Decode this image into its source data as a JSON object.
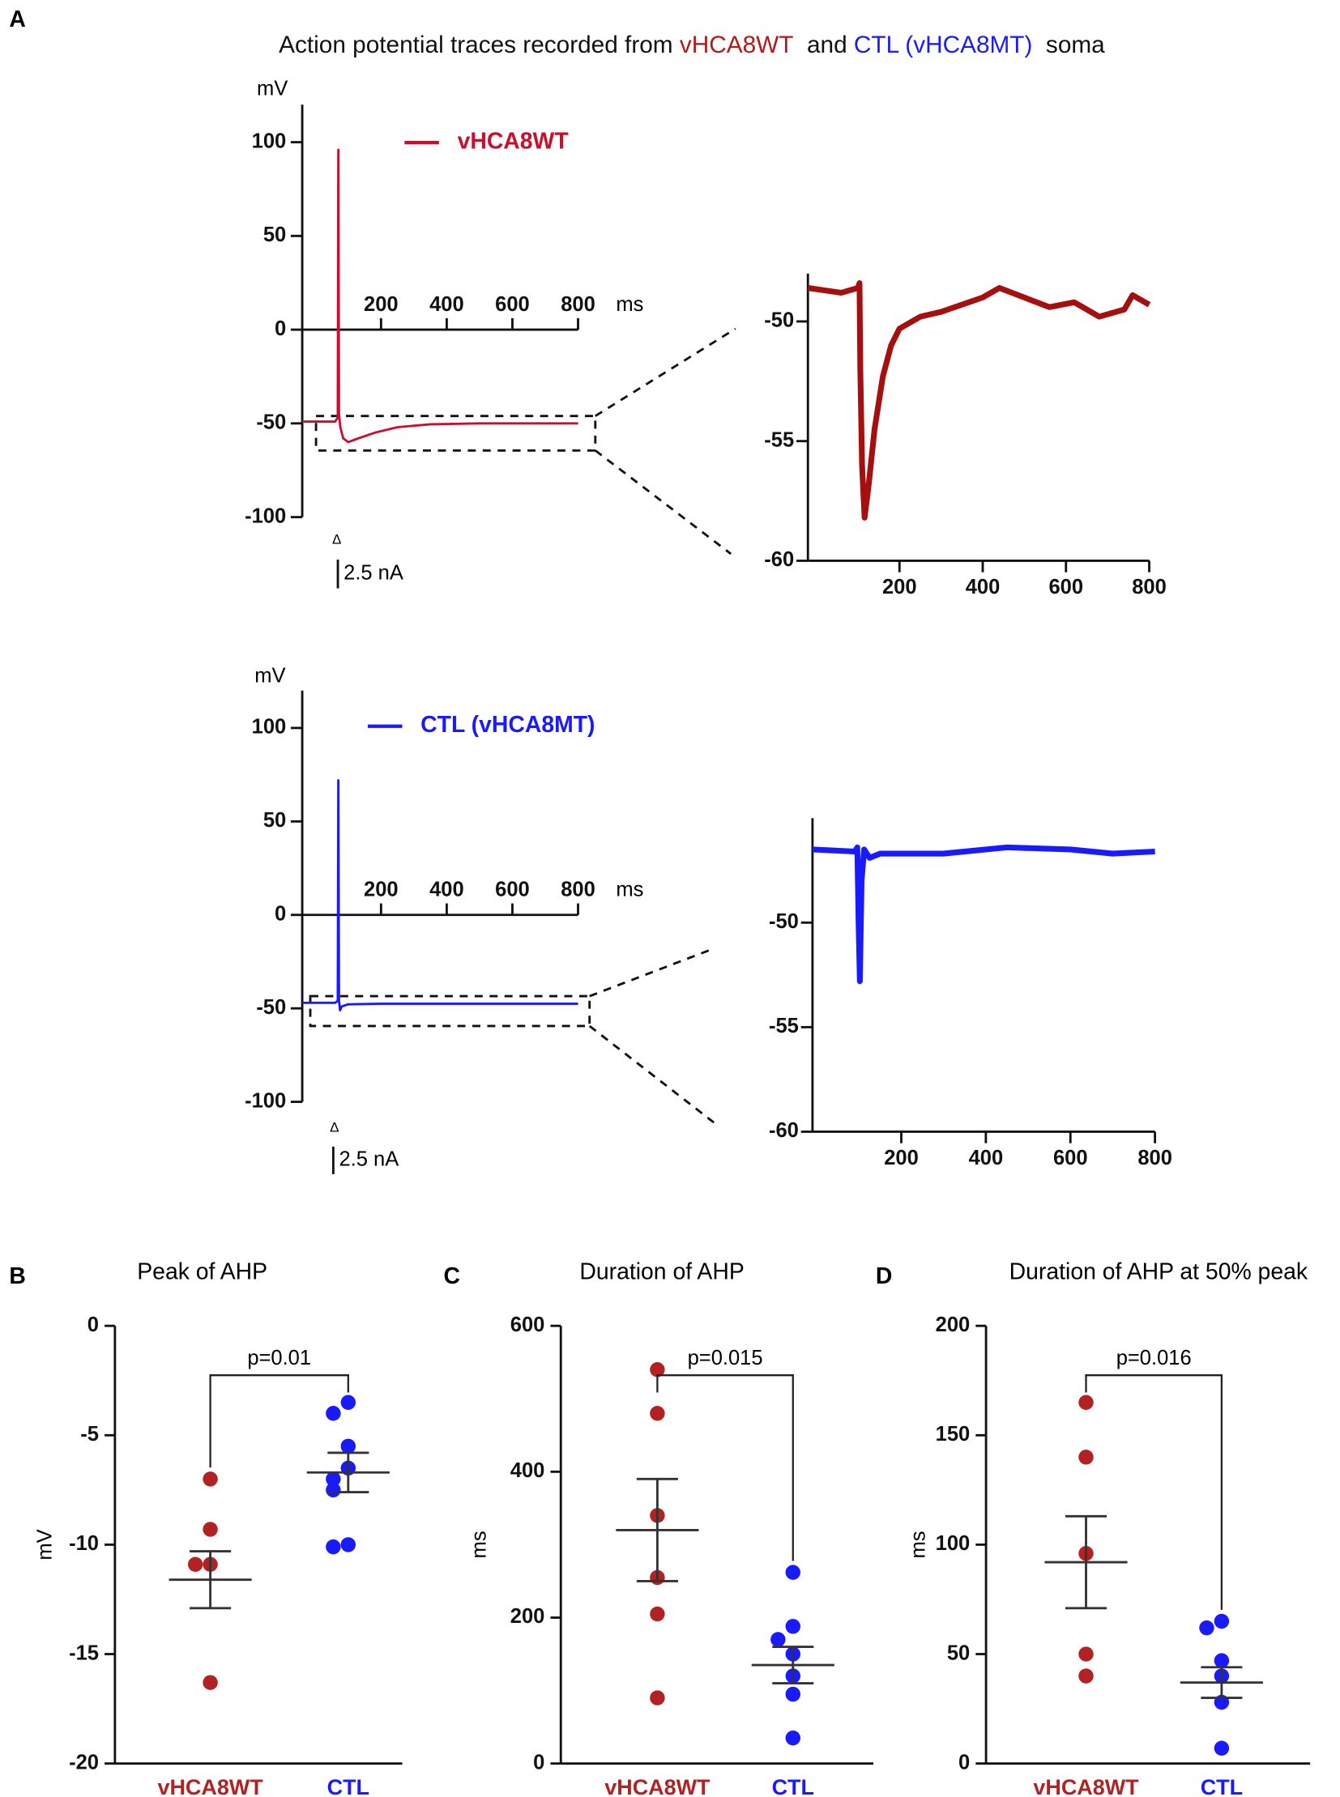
{
  "panel_labels": [
    "A",
    "B",
    "C",
    "D"
  ],
  "figure_title": [
    {
      "text": "Action potential traces recorded from ",
      "color": "#111111"
    },
    {
      "text": "vHCA8WT",
      "color": "#b31b1b"
    },
    {
      "text": "  and ",
      "color": "#111111"
    },
    {
      "text": "CTL (vHCA8MT)",
      "color": "#1a1aff"
    },
    {
      "text": "  soma",
      "color": "#111111"
    }
  ],
  "chart_data": [
    {
      "type": "trace",
      "ylabel": "mV",
      "xunit": "ms",
      "stim_label": "Δ",
      "scale_label": "2.5 nA",
      "xlim": [
        -40,
        800
      ],
      "ylim": [
        -100,
        120
      ],
      "xticks": [
        200,
        400,
        600,
        800
      ],
      "yticks": [
        100,
        50,
        0,
        -50,
        -100
      ],
      "x": [
        -40,
        60,
        68,
        70,
        72,
        76,
        85,
        100,
        130,
        180,
        250,
        350,
        500,
        800
      ],
      "series": [
        {
          "name": "vHCA8WT",
          "color": "#c8102e",
          "values": [
            -49,
            -49,
            -47,
            96,
            -45,
            -52,
            -58,
            -60,
            -58,
            -55,
            -52,
            -50.5,
            -50,
            -50
          ]
        }
      ]
    },
    {
      "type": "zoom",
      "xlim": [
        -20,
        800
      ],
      "ylim": [
        -60,
        -48
      ],
      "xticks": [
        200,
        400,
        600,
        800
      ],
      "yticks": [
        -50,
        -55,
        -60
      ],
      "x": [
        -20,
        60,
        100,
        104,
        106,
        110,
        116,
        125,
        140,
        160,
        180,
        200,
        250,
        300,
        400,
        440,
        500,
        560,
        620,
        680,
        740,
        760,
        800
      ],
      "series": [
        {
          "color": "#a50f0f",
          "values": [
            -48.6,
            -48.8,
            -48.6,
            -48.4,
            -52,
            -56,
            -58.2,
            -57,
            -54.5,
            -52.3,
            -51,
            -50.3,
            -49.8,
            -49.6,
            -49,
            -48.6,
            -49,
            -49.4,
            -49.2,
            -49.8,
            -49.5,
            -48.9,
            -49.3
          ]
        }
      ]
    },
    {
      "type": "trace",
      "ylabel": "mV",
      "xunit": "ms",
      "stim_label": "Δ",
      "scale_label": "2.5 nA",
      "xlim": [
        -40,
        800
      ],
      "ylim": [
        -100,
        120
      ],
      "xticks": [
        200,
        400,
        600,
        800
      ],
      "yticks": [
        100,
        50,
        0,
        -50,
        -100
      ],
      "x": [
        -40,
        60,
        68,
        70,
        72,
        75,
        80,
        100,
        200,
        800
      ],
      "series": [
        {
          "name": "CTL (vHCA8MT)",
          "color": "#1a1aff",
          "values": [
            -47,
            -47,
            -46,
            72,
            -46,
            -51,
            -49,
            -47.8,
            -47.5,
            -47.5
          ]
        }
      ]
    },
    {
      "type": "zoom",
      "xlim": [
        -10,
        800
      ],
      "ylim": [
        -60,
        -45
      ],
      "xticks": [
        200,
        400,
        600,
        800
      ],
      "yticks": [
        -50,
        -55,
        -60
      ],
      "x": [
        -10,
        90,
        96,
        99,
        102,
        106,
        112,
        125,
        150,
        300,
        450,
        600,
        700,
        800
      ],
      "series": [
        {
          "color": "#1a1aff",
          "values": [
            -46.5,
            -46.6,
            -46.4,
            -50,
            -52.8,
            -48,
            -46.5,
            -46.9,
            -46.7,
            -46.7,
            -46.4,
            -46.5,
            -46.7,
            -46.6
          ]
        }
      ]
    },
    {
      "type": "strip",
      "title": "Peak of AHP",
      "ylabel": "mV",
      "annotation": "p=0.01",
      "ylim": [
        -20,
        0
      ],
      "yticks": [
        0,
        -5,
        -10,
        -15,
        -20
      ],
      "series": [
        {
          "name": "vHCA8WT",
          "color": "#b22222",
          "values": [
            -7,
            -9.3,
            -10.9,
            -10.9,
            -16.3
          ],
          "mean": -11.6,
          "sem": 1.3
        },
        {
          "name": "CTL",
          "color": "#1a1aff",
          "values": [
            -3.5,
            -4,
            -5.5,
            -6.5,
            -7,
            -7.5,
            -10,
            -10.1
          ],
          "mean": -6.7,
          "sem": 0.9
        }
      ]
    },
    {
      "type": "strip",
      "title": "Duration of AHP",
      "ylabel": "ms",
      "annotation": "p=0.015",
      "ylim": [
        0,
        600
      ],
      "yticks": [
        0,
        200,
        400,
        600
      ],
      "series": [
        {
          "name": "vHCA8WT",
          "color": "#b22222",
          "values": [
            540,
            480,
            340,
            255,
            205,
            90
          ],
          "mean": 320,
          "sem": 70
        },
        {
          "name": "CTL",
          "color": "#1a1aff",
          "values": [
            262,
            188,
            170,
            150,
            120,
            95,
            35
          ],
          "mean": 135,
          "sem": 25
        }
      ]
    },
    {
      "type": "strip",
      "title": "Duration of AHP at 50% peak",
      "ylabel": "ms",
      "annotation": "p=0.016",
      "ylim": [
        0,
        200
      ],
      "yticks": [
        0,
        50,
        100,
        150,
        200
      ],
      "series": [
        {
          "name": "vHCA8WT",
          "color": "#b22222",
          "values": [
            165,
            140,
            96,
            50,
            40
          ],
          "mean": 92,
          "sem": 21
        },
        {
          "name": "CTL",
          "color": "#1a1aff",
          "values": [
            65,
            62,
            47,
            40,
            28,
            7
          ],
          "mean": 37,
          "sem": 7
        }
      ]
    }
  ]
}
